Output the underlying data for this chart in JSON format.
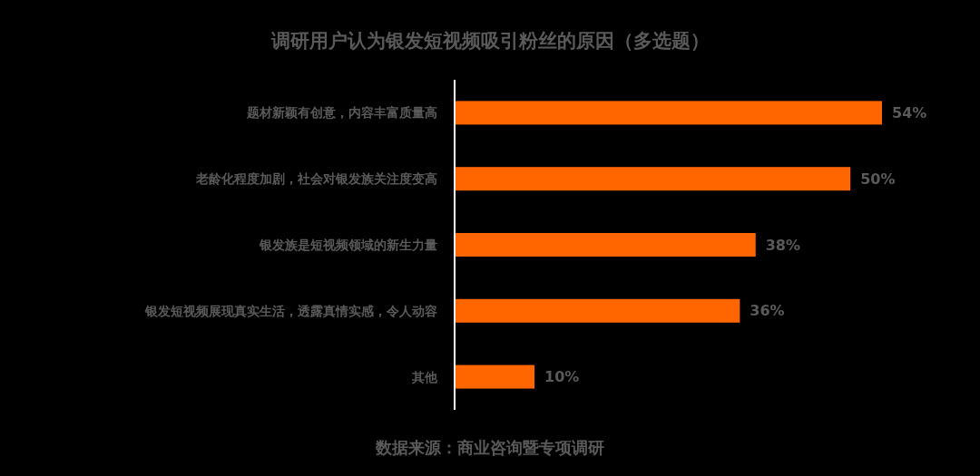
{
  "chart_data": {
    "type": "bar",
    "orientation": "horizontal",
    "title": "调研用户认为银发短视频吸引粉丝的原因（多选题）",
    "categories": [
      "题材新颖有创意，内容丰富质量高",
      "老龄化程度加剧，社会对银发族关注度变高",
      "银发族是短视频领域的新生力量",
      "银发短视频展现真实生活，透露真情实感，令人动容",
      "其他"
    ],
    "values": [
      54,
      50,
      38,
      36,
      10
    ],
    "value_labels": [
      "54%",
      "50%",
      "38%",
      "36%",
      "10%"
    ],
    "color": "#ff6600",
    "annotations": [
      "数据来源：商业咨询暨专项调研"
    ]
  }
}
